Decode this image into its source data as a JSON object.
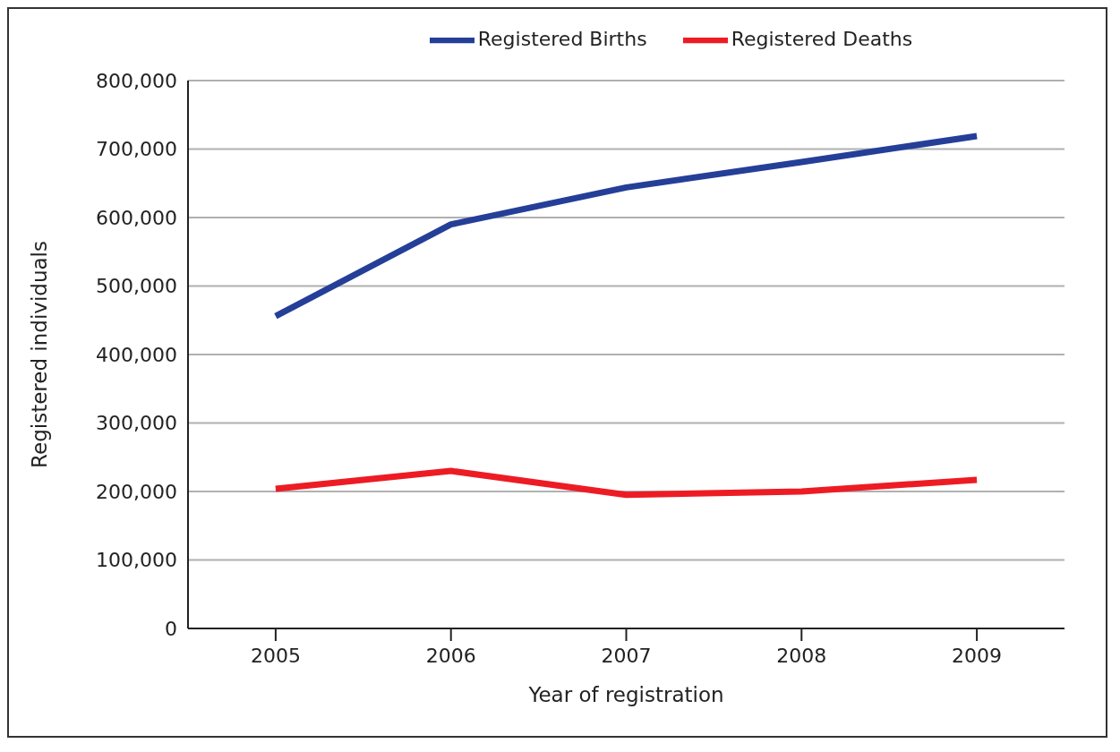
{
  "chart_data": {
    "type": "line",
    "xlabel": "Year of registration",
    "ylabel": "Registered individuals",
    "categories": [
      "2005",
      "2006",
      "2007",
      "2008",
      "2009"
    ],
    "series": [
      {
        "name": "Registered Births",
        "color": "#253f98",
        "values": [
          456000,
          590000,
          644000,
          681000,
          719000
        ]
      },
      {
        "name": "Registered Deaths",
        "color": "#ed1c24",
        "values": [
          204000,
          230000,
          195000,
          200000,
          217000
        ]
      }
    ],
    "ylim": [
      0,
      800000
    ],
    "yticks": [
      0,
      {
        "value": 100000,
        "label": "100,000"
      },
      {
        "value": 200000,
        "label": "200,000"
      },
      {
        "value": 300000,
        "label": "300,000"
      },
      {
        "value": 400000,
        "label": "400,000"
      },
      {
        "value": 500000,
        "label": "500,000"
      },
      {
        "value": 600000,
        "label": "600,000"
      },
      {
        "value": 700000,
        "label": "700,000"
      },
      {
        "value": 800000,
        "label": "800,000"
      }
    ],
    "grid": "y",
    "legend": "top",
    "marker": "none",
    "line_style": "solid"
  }
}
